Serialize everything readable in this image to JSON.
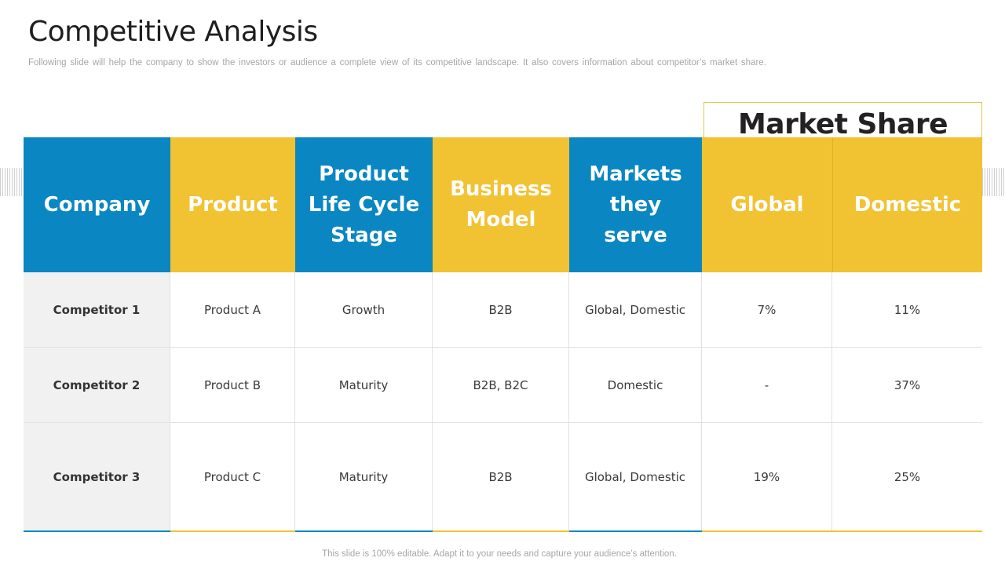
{
  "slide": {
    "title": "Competitive Analysis",
    "subtitle": "Following slide will help the company to show the investors or audience a complete view of its competitive landscape. It also covers information about competitor’s market share.",
    "footer": "This slide is 100% editable. Adapt it to your needs and capture your audience’s attention."
  },
  "table": {
    "group_header": "Market Share",
    "headers": [
      "Company",
      "Product",
      "Product\nLife Cycle\nStage",
      "Business\nModel",
      "Markets\nthey serve",
      "Global",
      "Domestic"
    ],
    "rows": [
      [
        "Competitor 1",
        "Product A",
        "Growth",
        "B2B",
        "Global, Domestic",
        "7%",
        "11%"
      ],
      [
        "Competitor 2",
        "Product B",
        "Maturity",
        "B2B, B2C",
        "Domestic",
        "-",
        "37%"
      ],
      [
        "Competitor 3",
        "Product C",
        "Maturity",
        "B2B",
        "Global, Domestic",
        "19%",
        "25%"
      ]
    ]
  },
  "colors": {
    "blue": "#0a87c2",
    "yellow": "#f1c232",
    "first_column_bg": "#f1f1f1"
  }
}
